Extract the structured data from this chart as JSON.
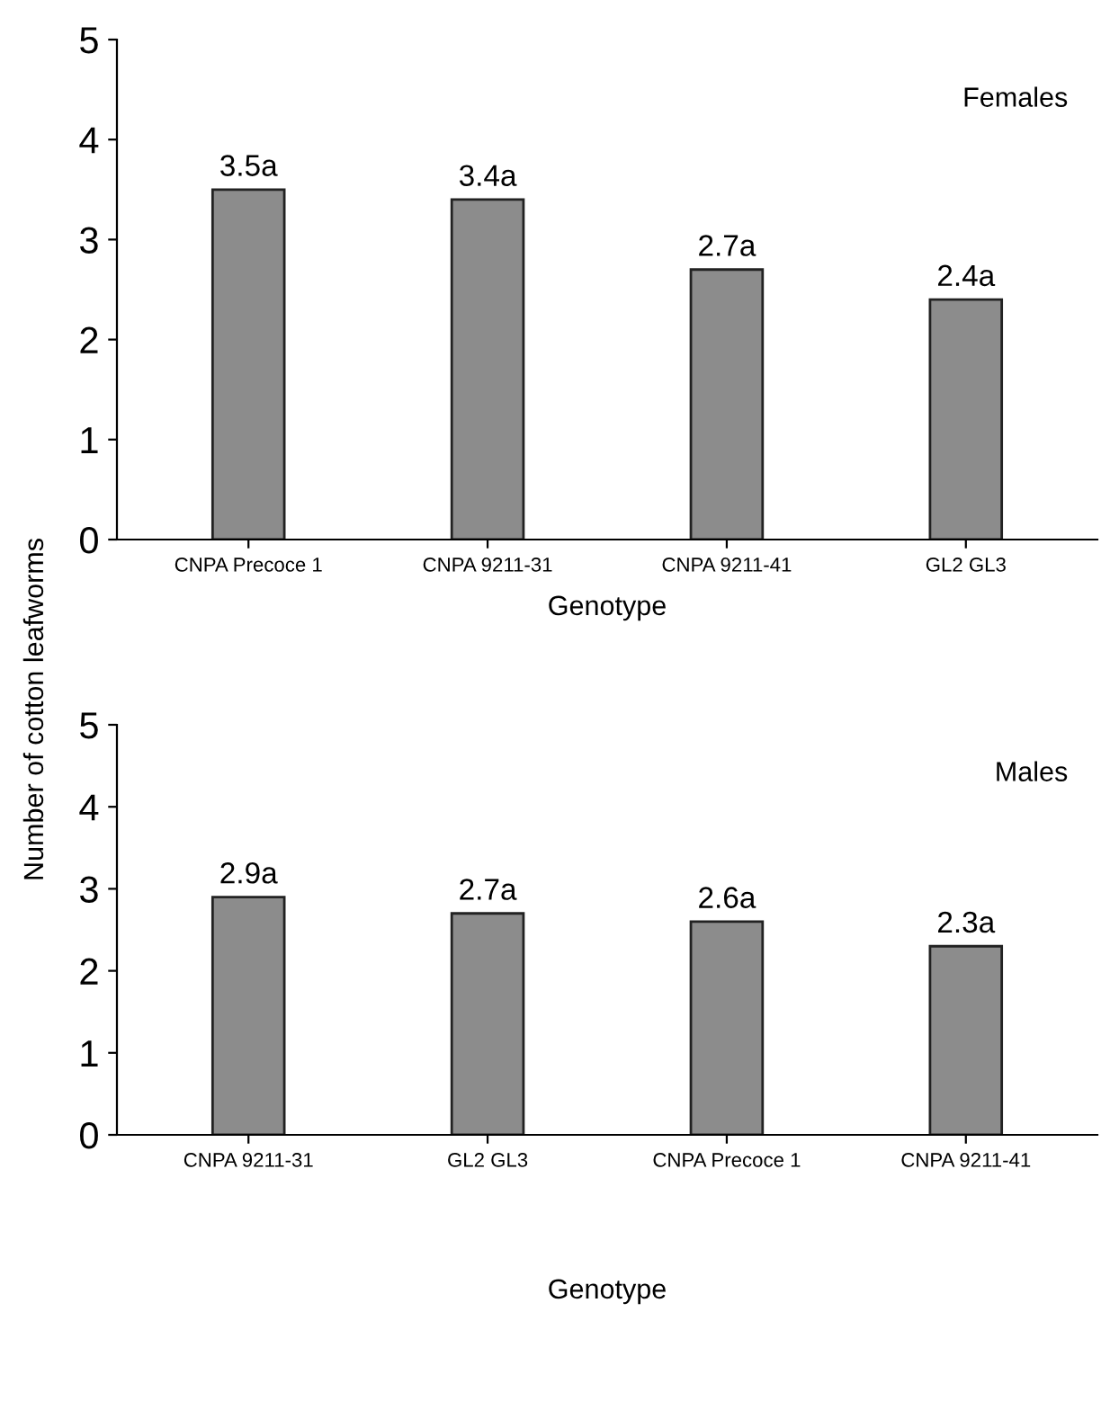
{
  "chart_data": [
    {
      "type": "bar",
      "xlabel": "Genotype",
      "ylabel": "Number of cotton leafworms",
      "categories": [
        "CNPA Precoce 1",
        "CNPA 9211-31",
        "CNPA 9211-41",
        "GL2 GL3"
      ],
      "values": [
        3.5,
        3.4,
        2.7,
        2.4
      ],
      "value_labels": [
        "3.5a",
        "3.4a",
        "2.7a",
        "2.4a"
      ],
      "color": "#8c8c8c",
      "ylim": [
        0,
        5
      ],
      "yticks": [
        0,
        1,
        2,
        3,
        4,
        5
      ],
      "annotations": [
        "Females"
      ]
    },
    {
      "type": "bar",
      "xlabel": "Genotype",
      "categories": [
        "CNPA 9211-31",
        "GL2 GL3",
        "CNPA Precoce 1",
        "CNPA 9211-41"
      ],
      "values": [
        2.9,
        2.7,
        2.6,
        2.3
      ],
      "value_labels": [
        "2.9a",
        "2.7a",
        "2.6a",
        "2.3a"
      ],
      "color": "#8c8c8c",
      "ylim": [
        0,
        5
      ],
      "yticks": [
        0,
        1,
        2,
        3,
        4,
        5
      ],
      "annotations": [
        "Males"
      ]
    }
  ]
}
